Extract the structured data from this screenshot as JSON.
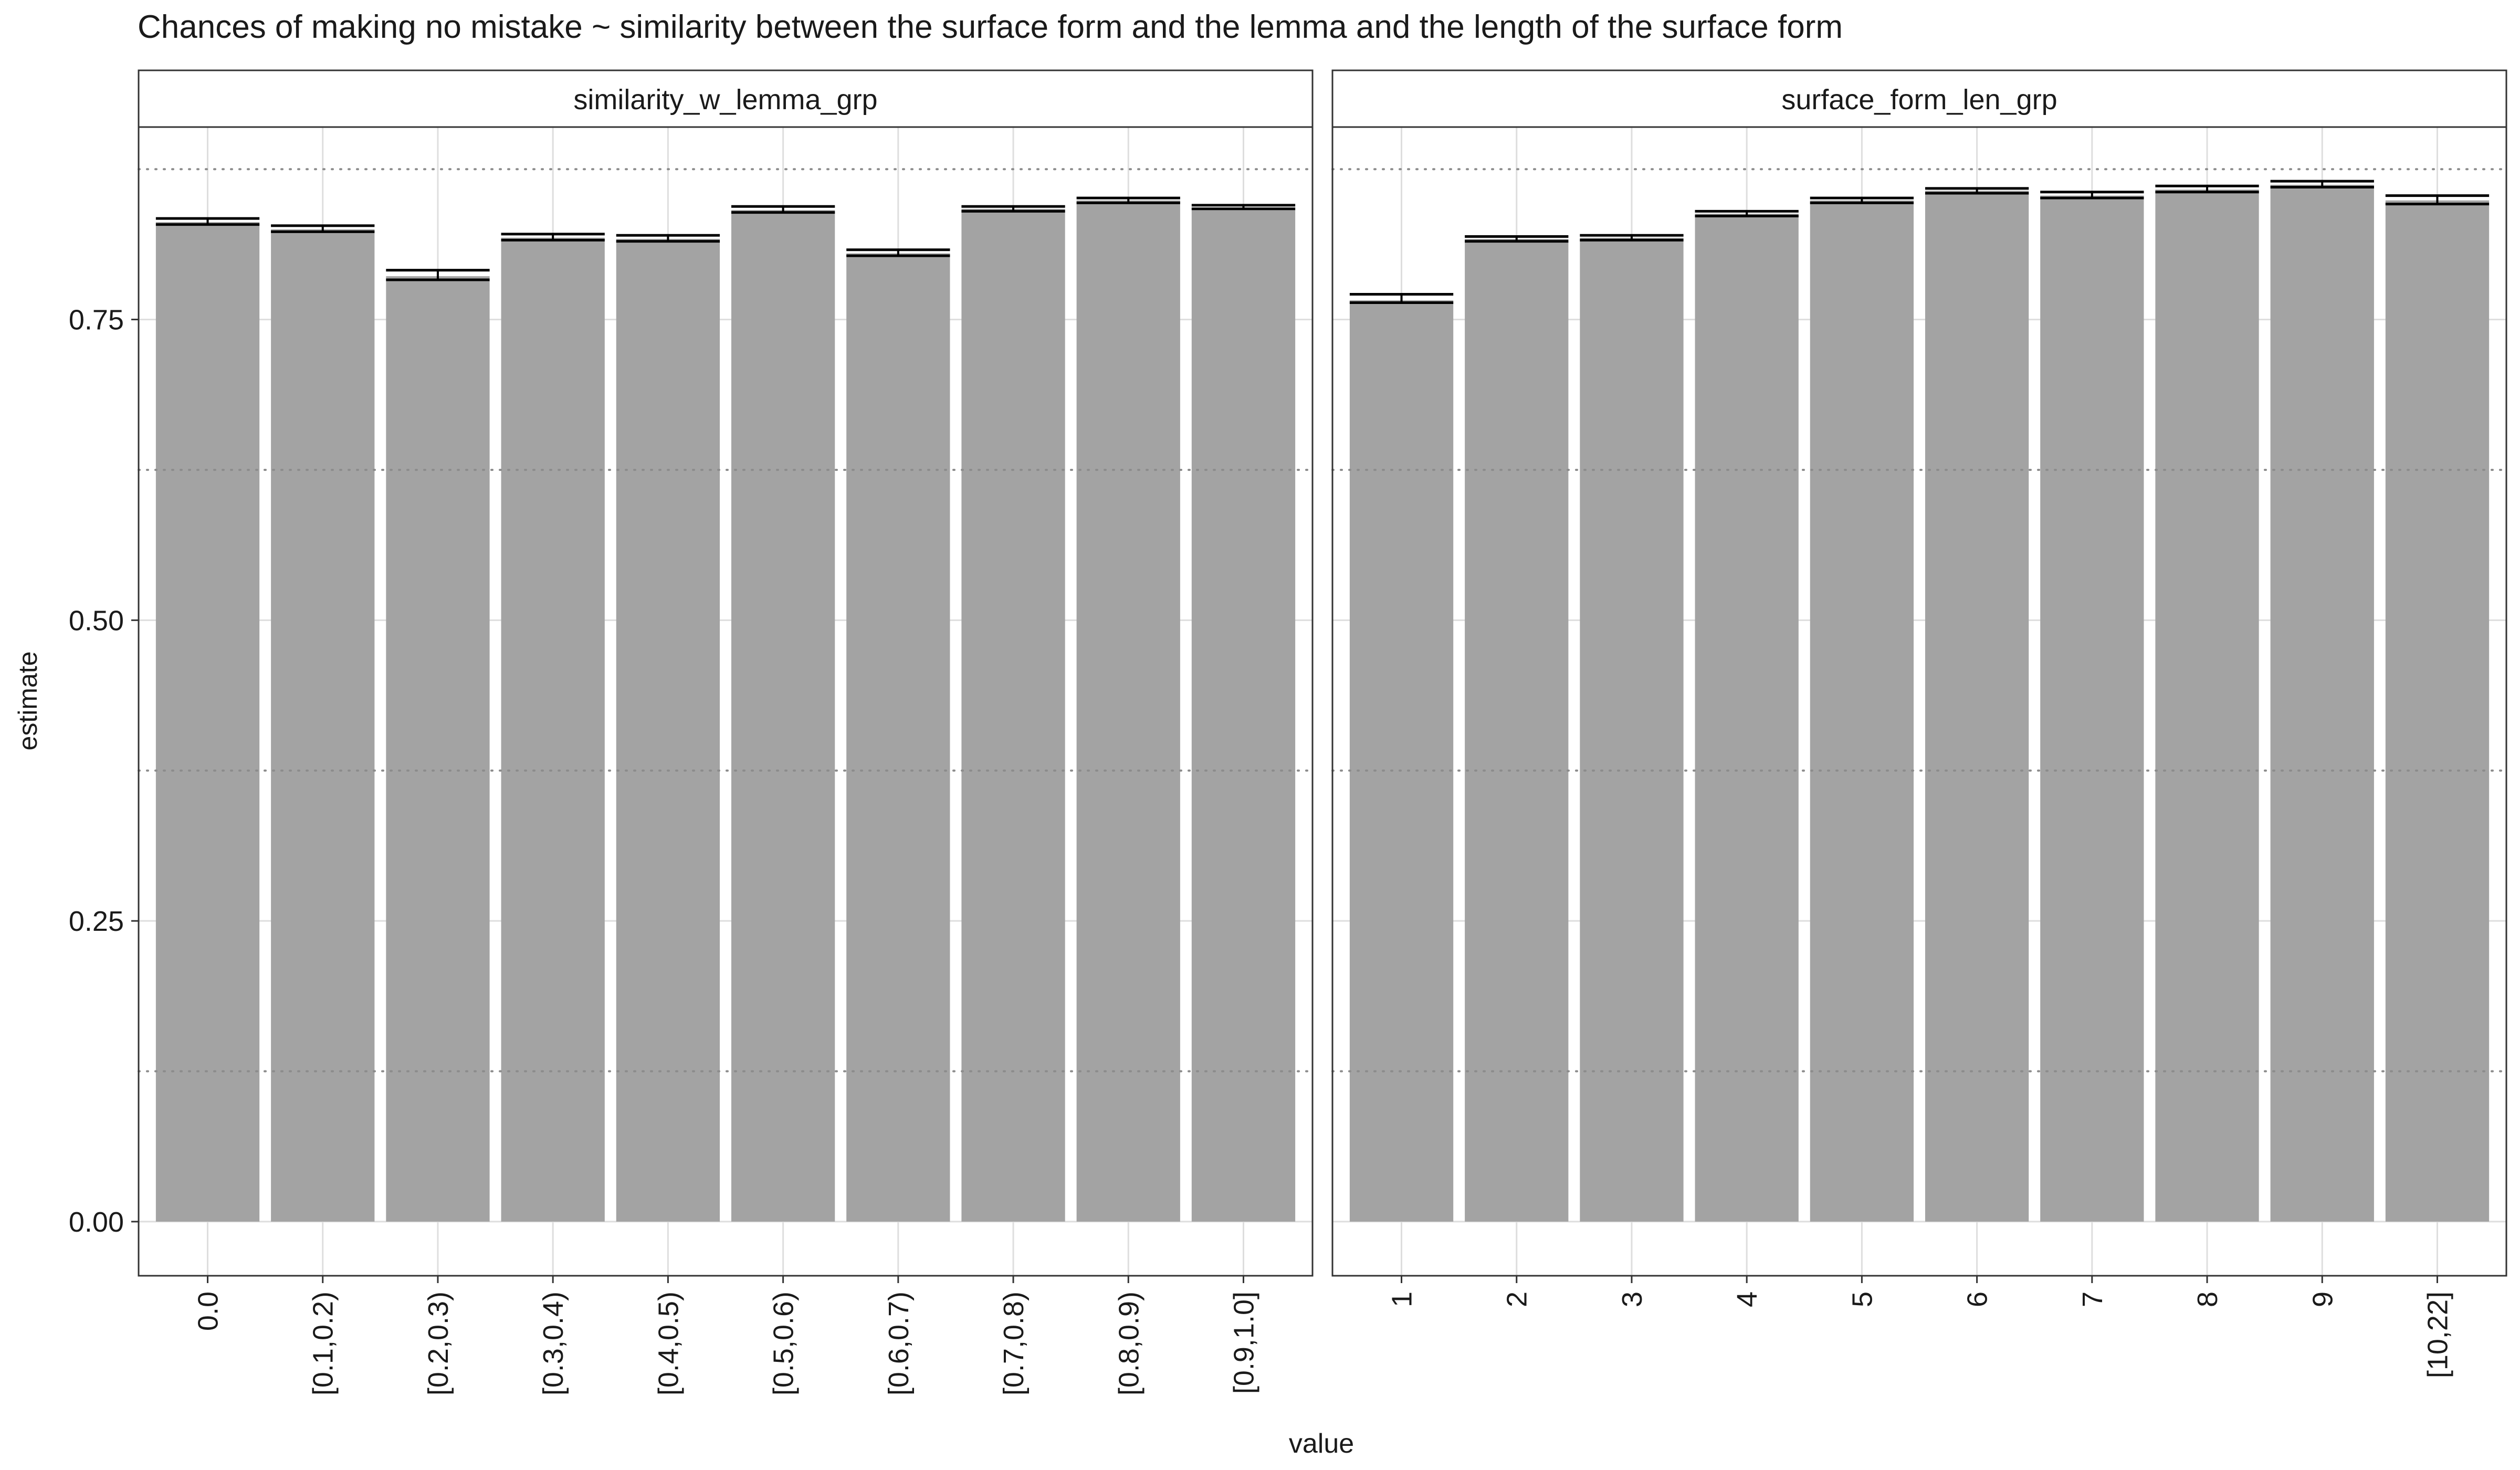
{
  "chart_data": {
    "type": "bar",
    "title": "Chances of making no mistake ~ similarity between the surface form and the lemma and the length of the surface form",
    "xlabel": "value",
    "ylabel": "estimate",
    "ylim": [
      -0.045,
      0.91
    ],
    "yticks": [
      0.0,
      0.25,
      0.5,
      0.75
    ],
    "ytick_labels": [
      "0.00",
      "0.25",
      "0.50",
      "0.75"
    ],
    "grid": true,
    "dotted_hlines": [
      0.125,
      0.375,
      0.625,
      0.875
    ],
    "colors": {
      "bar": "#a3a3a3",
      "strip": "#ffffff",
      "grid": "#dedede",
      "errorbar": "#000000",
      "text": "#1a1a1a"
    },
    "panels": [
      {
        "strip_label": "similarity_w_lemma_grp",
        "categories": [
          "0.0",
          "[0.1,0.2)",
          "[0.2,0.3)",
          "[0.3,0.4)",
          "[0.4,0.5)",
          "[0.5,0.6)",
          "[0.6,0.7)",
          "[0.7,0.8)",
          "[0.8,0.9)",
          "[0.9,1.0]"
        ],
        "values": [
          0.831,
          0.825,
          0.786,
          0.818,
          0.817,
          0.841,
          0.805,
          0.842,
          0.849,
          0.843
        ],
        "err_low": [
          0.829,
          0.823,
          0.783,
          0.816,
          0.815,
          0.839,
          0.803,
          0.84,
          0.847,
          0.842
        ],
        "err_high": [
          0.834,
          0.828,
          0.791,
          0.821,
          0.82,
          0.844,
          0.808,
          0.844,
          0.851,
          0.845
        ]
      },
      {
        "strip_label": "surface_form_len_grp",
        "categories": [
          "1",
          "2",
          "3",
          "4",
          "5",
          "6",
          "7",
          "8",
          "9",
          "[10,22]"
        ],
        "values": [
          0.766,
          0.817,
          0.818,
          0.838,
          0.849,
          0.857,
          0.853,
          0.858,
          0.862,
          0.849
        ],
        "err_low": [
          0.764,
          0.815,
          0.816,
          0.836,
          0.847,
          0.855,
          0.851,
          0.856,
          0.86,
          0.846
        ],
        "err_high": [
          0.771,
          0.819,
          0.82,
          0.84,
          0.851,
          0.859,
          0.856,
          0.861,
          0.865,
          0.853
        ]
      }
    ]
  }
}
